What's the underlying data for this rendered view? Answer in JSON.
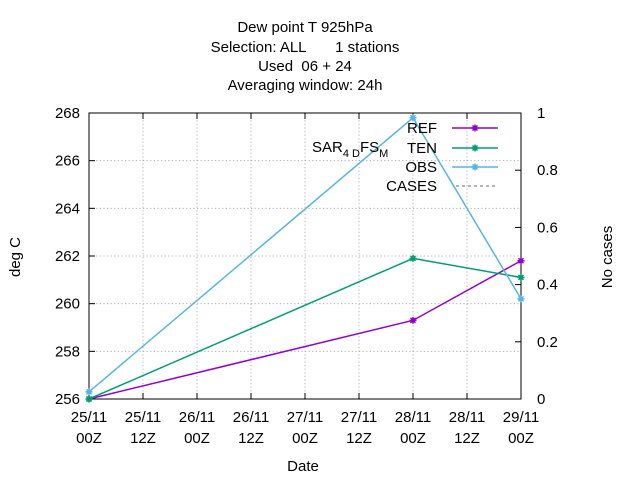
{
  "chart_data": {
    "type": "line",
    "title_lines": [
      "Dew point T 925hPa",
      "Selection: ALL       1 stations",
      "Used  06 + 24",
      "Averaging window: 24h"
    ],
    "xlabel": "Date",
    "ylabel": "deg C",
    "y2label": "No cases",
    "x_ticks": [
      {
        "line1": "25/11",
        "line2": "00Z"
      },
      {
        "line1": "25/11",
        "line2": "12Z"
      },
      {
        "line1": "26/11",
        "line2": "00Z"
      },
      {
        "line1": "26/11",
        "line2": "12Z"
      },
      {
        "line1": "27/11",
        "line2": "00Z"
      },
      {
        "line1": "27/11",
        "line2": "12Z"
      },
      {
        "line1": "28/11",
        "line2": "00Z"
      },
      {
        "line1": "28/11",
        "line2": "12Z"
      },
      {
        "line1": "29/11",
        "line2": "00Z"
      }
    ],
    "xlim": [
      "25/11 00Z",
      "29/11 00Z"
    ],
    "ylim": [
      256,
      268
    ],
    "y_ticks": [
      256,
      258,
      260,
      262,
      264,
      266,
      268
    ],
    "y2lim": [
      0,
      1
    ],
    "y2_ticks": [
      "0",
      "0.2",
      "0.4",
      "0.6",
      "0.8",
      "1"
    ],
    "grid": true,
    "legend_position": "top-right",
    "legend_annotation": {
      "main": "SAR",
      "sub1": "4 D",
      "mid": "FS",
      "sub2": "M"
    },
    "series": [
      {
        "name": "REF",
        "color": "#9400d3",
        "x": [
          "25/11 00Z",
          "28/11 00Z",
          "29/11 00Z"
        ],
        "values": [
          256.0,
          259.3,
          261.8
        ]
      },
      {
        "name": "TEN",
        "color": "#009e73",
        "x": [
          "25/11 00Z",
          "28/11 00Z",
          "29/11 00Z"
        ],
        "values": [
          256.0,
          261.9,
          261.1
        ]
      },
      {
        "name": "OBS",
        "color": "#56b4e9",
        "x": [
          "25/11 00Z",
          "28/11 00Z",
          "29/11 00Z"
        ],
        "values": [
          256.3,
          267.8,
          260.2
        ]
      },
      {
        "name": "CASES",
        "color": "#888888",
        "dashed": true
      }
    ]
  }
}
